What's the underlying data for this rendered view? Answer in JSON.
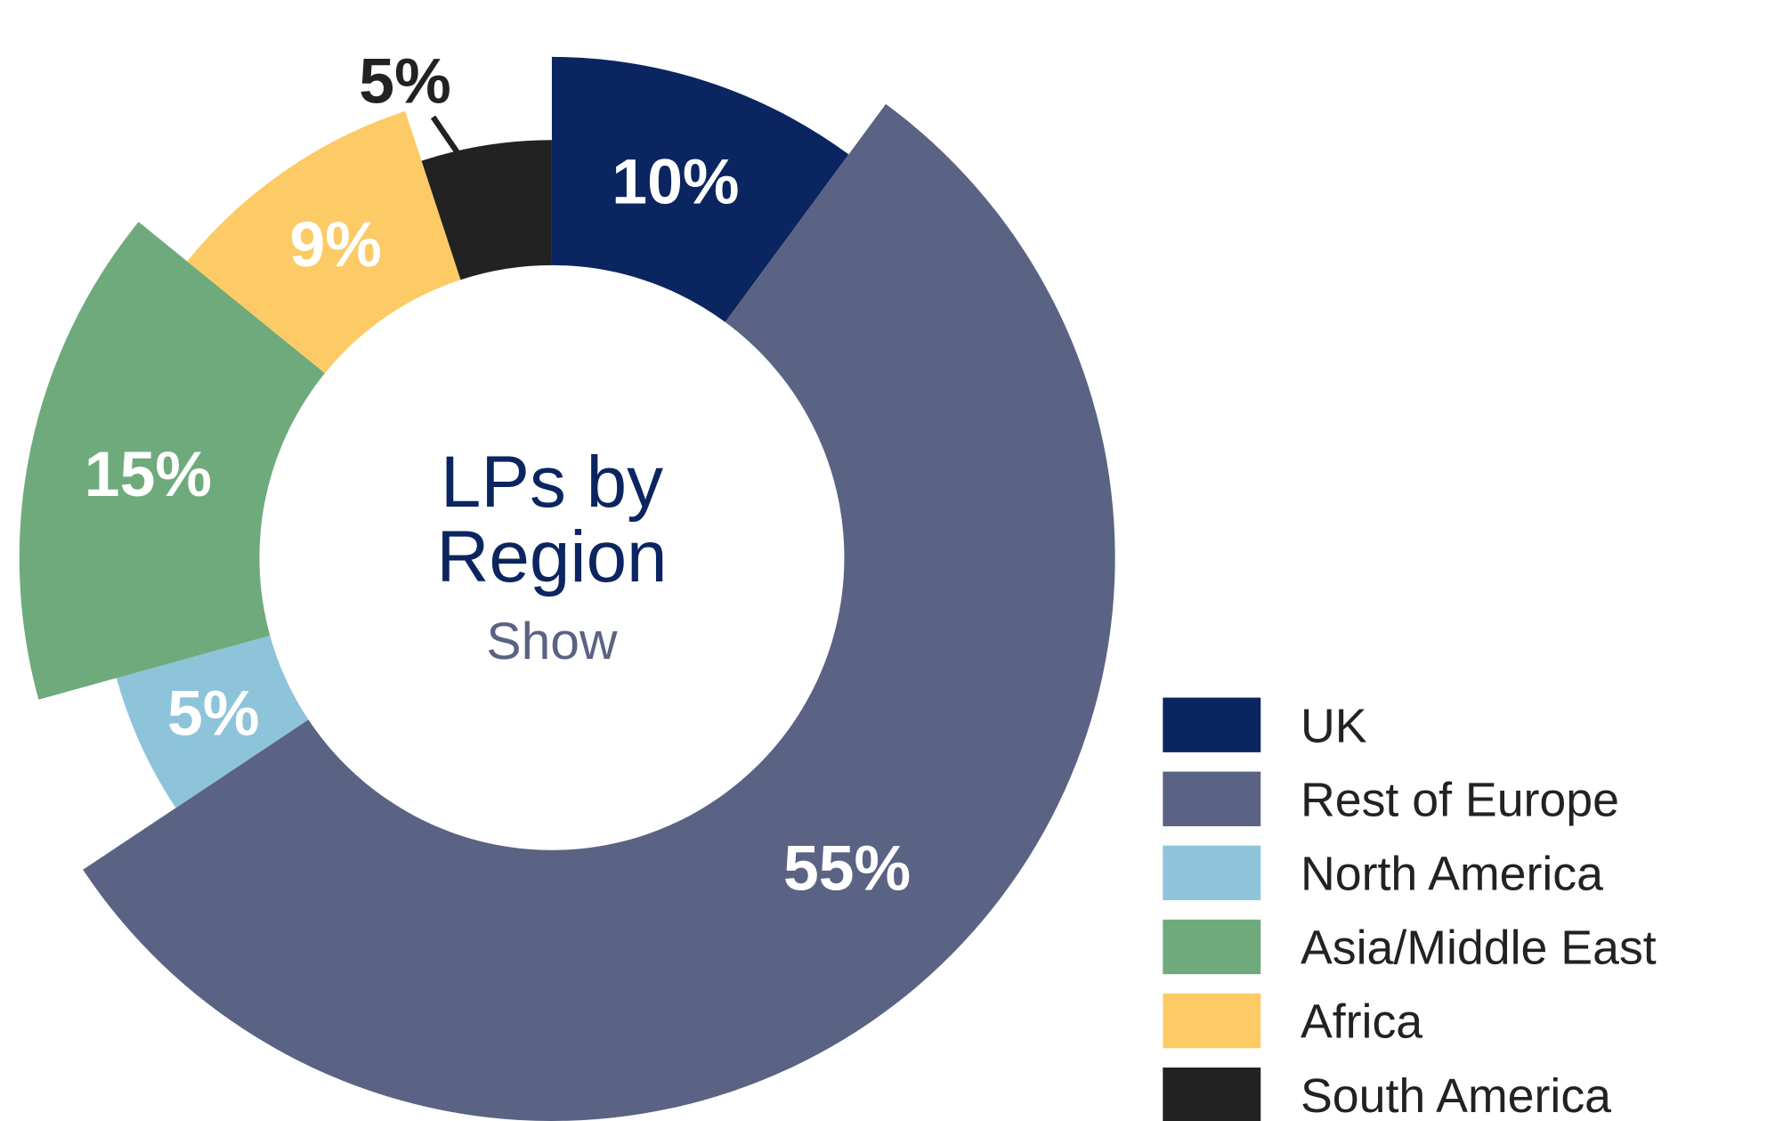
{
  "chart_data": {
    "type": "donut",
    "title": "LPs by Region",
    "subtitle": "Show",
    "categories": [
      "UK",
      "Rest of Europe",
      "North America",
      "Asia/Middle East",
      "Africa",
      "South America"
    ],
    "values": [
      10,
      55,
      5,
      15,
      9,
      5
    ],
    "value_labels": [
      "10%",
      "55%",
      "5%",
      "15%",
      "9%",
      "5%"
    ],
    "colors": [
      "#0b2560",
      "#5a6384",
      "#8dc4da",
      "#6faa7c",
      "#fccb66",
      "#222222"
    ],
    "legend": "bottom-right"
  }
}
